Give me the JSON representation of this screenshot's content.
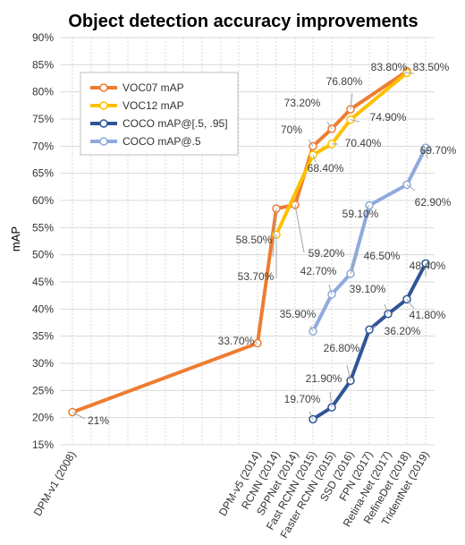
{
  "chart_data": {
    "type": "line",
    "title": "Object detection accuracy improvements",
    "xlabel": "",
    "ylabel": "mAP",
    "ylim": [
      15,
      90
    ],
    "y_ticks": [
      "15%",
      "20%",
      "25%",
      "30%",
      "35%",
      "40%",
      "45%",
      "50%",
      "55%",
      "60%",
      "65%",
      "70%",
      "75%",
      "80%",
      "85%",
      "90%"
    ],
    "categories": [
      "DPM-v1 (2008)",
      "DPM-v5 (2014)",
      "RCNN (2014)",
      "SPPNet (2014)",
      "Fast RCNN (2015)",
      "Faster RCNN (2015)",
      "SSD (2016)",
      "FPN (2017)",
      "Retina-Net (2017)",
      "RefineDet (2018)",
      "TridentNet (2019)"
    ],
    "grid": true,
    "legend_position": "top-left",
    "series": [
      {
        "name": "VOC07 mAP",
        "color": "#ED7D31",
        "points": [
          {
            "x": "DPM-v1 (2008)",
            "y": 21,
            "label": "21%"
          },
          {
            "x": "DPM-v5 (2014)",
            "y": 33.7,
            "label": "33.70%"
          },
          {
            "x": "RCNN (2014)",
            "y": 58.5,
            "label": "58.50%"
          },
          {
            "x": "SPPNet (2014)",
            "y": 59.2,
            "label": "59.20%"
          },
          {
            "x": "Fast RCNN (2015)",
            "y": 70,
            "label": "70%"
          },
          {
            "x": "Faster RCNN (2015)",
            "y": 73.2,
            "label": "73.20%"
          },
          {
            "x": "SSD (2016)",
            "y": 76.8,
            "label": "76.80%"
          },
          {
            "x": "RefineDet (2018)",
            "y": 83.8,
            "label": "83.80%"
          }
        ]
      },
      {
        "name": "VOC12 mAP",
        "color": "#FFC000",
        "points": [
          {
            "x": "RCNN (2014)",
            "y": 53.7,
            "label": "53.70%"
          },
          {
            "x": "Fast RCNN (2015)",
            "y": 68.4,
            "label": "68.40%"
          },
          {
            "x": "Faster RCNN (2015)",
            "y": 70.4,
            "label": "70.40%"
          },
          {
            "x": "SSD (2016)",
            "y": 74.9,
            "label": "74.90%"
          },
          {
            "x": "RefineDet (2018)",
            "y": 83.5,
            "label": "83.50%"
          }
        ]
      },
      {
        "name": "COCO mAP@[.5, .95]",
        "color": "#2F5597",
        "points": [
          {
            "x": "Fast RCNN (2015)",
            "y": 19.7,
            "label": "19.70%"
          },
          {
            "x": "Faster RCNN (2015)",
            "y": 21.9,
            "label": "21.90%"
          },
          {
            "x": "SSD (2016)",
            "y": 26.8,
            "label": "26.80%"
          },
          {
            "x": "FPN (2017)",
            "y": 36.2,
            "label": "36.20%"
          },
          {
            "x": "Retina-Net (2017)",
            "y": 39.1,
            "label": "39.10%"
          },
          {
            "x": "RefineDet (2018)",
            "y": 41.8,
            "label": "41.80%"
          },
          {
            "x": "TridentNet (2019)",
            "y": 48.4,
            "label": "48.40%"
          }
        ]
      },
      {
        "name": "COCO mAP@.5",
        "color": "#8FAADC",
        "points": [
          {
            "x": "Fast RCNN (2015)",
            "y": 35.9,
            "label": "35.90%"
          },
          {
            "x": "Faster RCNN (2015)",
            "y": 42.7,
            "label": "42.70%"
          },
          {
            "x": "SSD (2016)",
            "y": 46.5,
            "label": "46.50%"
          },
          {
            "x": "FPN (2017)",
            "y": 59.1,
            "label": "59.10%"
          },
          {
            "x": "RefineDet (2018)",
            "y": 62.9,
            "label": "62.90%"
          },
          {
            "x": "TridentNet (2019)",
            "y": 69.7,
            "label": "69.70%"
          }
        ]
      }
    ]
  }
}
